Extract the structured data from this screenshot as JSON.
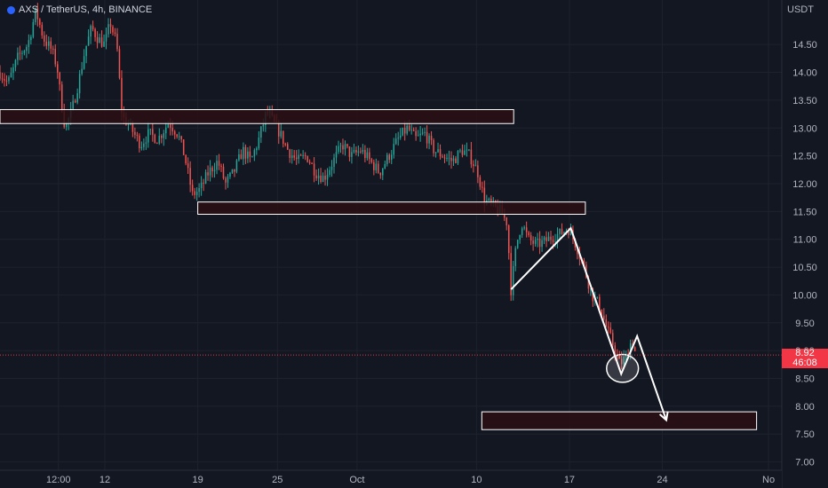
{
  "header": {
    "symbol": "AXS / TetherUS, 4h, BINANCE"
  },
  "axis": {
    "currency": "USDT"
  },
  "price_badge": {
    "price": "8.92",
    "countdown": "46:08"
  },
  "colors": {
    "background": "#131722",
    "up": "#26a69a",
    "down": "#ef5350",
    "zone_fill": "#2a0f14",
    "zone_stroke": "#ffffff",
    "drawing": "#ffffff",
    "last_price": "#f23645"
  },
  "chart_data": {
    "type": "candlestick",
    "symbol": "AXS / TetherUS",
    "interval": "4h",
    "exchange": "BINANCE",
    "ylim": [
      6.85,
      15.3
    ],
    "y_ticks": [
      7.0,
      7.5,
      8.0,
      8.5,
      9.0,
      9.5,
      10.0,
      10.5,
      11.0,
      11.5,
      12.0,
      12.5,
      13.0,
      13.5,
      14.0,
      14.5
    ],
    "y_tick_labels": [
      "7.00",
      "7.50",
      "8.00",
      "8.50",
      "9.00",
      "9.50",
      "10.00",
      "10.50",
      "11.00",
      "11.50",
      "12.00",
      "12.50",
      "13.00",
      "13.50",
      "14.00",
      "14.50"
    ],
    "x_ticks": [
      {
        "label": "12:00",
        "day": 0.5
      },
      {
        "label": "12",
        "day": 4
      },
      {
        "label": "19",
        "day": 11
      },
      {
        "label": "25",
        "day": 17
      },
      {
        "label": "Oct",
        "day": 23
      },
      {
        "label": "10",
        "day": 32
      },
      {
        "label": "17",
        "day": 39
      },
      {
        "label": "24",
        "day": 46
      },
      {
        "label": "No",
        "day": 54
      }
    ],
    "x_range_days": [
      -3.9,
      55
    ],
    "last_price": 8.92,
    "price_path": [
      [
        -3.9,
        14.0
      ],
      [
        -3.3,
        13.8
      ],
      [
        -2.5,
        14.3
      ],
      [
        -1.8,
        14.5
      ],
      [
        -1.2,
        15.1
      ],
      [
        -0.6,
        14.6
      ],
      [
        0.0,
        14.4
      ],
      [
        0.4,
        14.1
      ],
      [
        0.7,
        13.5
      ],
      [
        1.0,
        13.0
      ],
      [
        1.5,
        13.3
      ],
      [
        2.0,
        13.8
      ],
      [
        2.5,
        14.4
      ],
      [
        3.0,
        14.8
      ],
      [
        3.5,
        14.6
      ],
      [
        4.0,
        14.5
      ],
      [
        4.4,
        14.9
      ],
      [
        4.9,
        14.5
      ],
      [
        5.3,
        13.2
      ],
      [
        5.7,
        13.1
      ],
      [
        6.2,
        12.9
      ],
      [
        6.7,
        12.7
      ],
      [
        7.3,
        12.9
      ],
      [
        8.0,
        12.8
      ],
      [
        8.8,
        13.1
      ],
      [
        9.5,
        12.9
      ],
      [
        10.0,
        12.5
      ],
      [
        10.6,
        11.8
      ],
      [
        11.2,
        11.9
      ],
      [
        11.8,
        12.2
      ],
      [
        12.5,
        12.4
      ],
      [
        13.1,
        12.0
      ],
      [
        13.7,
        12.2
      ],
      [
        14.4,
        12.6
      ],
      [
        15.0,
        12.4
      ],
      [
        15.6,
        12.8
      ],
      [
        16.2,
        13.3
      ],
      [
        16.7,
        13.1
      ],
      [
        17.2,
        12.9
      ],
      [
        17.8,
        12.6
      ],
      [
        18.5,
        12.4
      ],
      [
        19.2,
        12.5
      ],
      [
        19.9,
        12.2
      ],
      [
        20.5,
        12.1
      ],
      [
        21.2,
        12.4
      ],
      [
        21.9,
        12.7
      ],
      [
        22.6,
        12.5
      ],
      [
        23.3,
        12.6
      ],
      [
        24.0,
        12.4
      ],
      [
        24.7,
        12.2
      ],
      [
        25.4,
        12.5
      ],
      [
        26.1,
        12.8
      ],
      [
        26.8,
        13.0
      ],
      [
        27.4,
        12.8
      ],
      [
        28.1,
        12.9
      ],
      [
        28.8,
        12.6
      ],
      [
        29.5,
        12.5
      ],
      [
        30.2,
        12.4
      ],
      [
        30.9,
        12.6
      ],
      [
        31.5,
        12.5
      ],
      [
        32.1,
        12.2
      ],
      [
        32.6,
        11.7
      ],
      [
        33.2,
        11.6
      ],
      [
        33.8,
        11.5
      ],
      [
        34.3,
        11.3
      ],
      [
        34.6,
        10.1
      ],
      [
        35.0,
        10.9
      ],
      [
        35.4,
        11.3
      ],
      [
        35.9,
        11.0
      ],
      [
        36.5,
        10.9
      ],
      [
        37.1,
        10.95
      ],
      [
        37.7,
        11.05
      ],
      [
        38.3,
        11.1
      ],
      [
        38.9,
        11.2
      ],
      [
        39.5,
        10.9
      ],
      [
        40.1,
        10.5
      ],
      [
        40.7,
        10.0
      ],
      [
        41.3,
        9.8
      ],
      [
        41.8,
        9.4
      ],
      [
        42.3,
        9.1
      ],
      [
        42.8,
        8.75
      ],
      [
        43.3,
        8.9
      ],
      [
        43.7,
        9.2
      ],
      [
        44.0,
        8.92
      ]
    ]
  },
  "drawings": {
    "zones": [
      {
        "x0_day": -3.9,
        "x1_day": 34.8,
        "y_low": 13.08,
        "y_high": 13.33
      },
      {
        "x0_day": 11.0,
        "x1_day": 40.2,
        "y_low": 11.45,
        "y_high": 11.67
      },
      {
        "x0_day": 32.4,
        "x1_day": 53.1,
        "y_low": 7.58,
        "y_high": 7.9
      }
    ],
    "path": [
      [
        34.6,
        10.1
      ],
      [
        39.1,
        11.2
      ],
      [
        42.9,
        8.58
      ],
      [
        44.1,
        9.26
      ],
      [
        46.3,
        7.75
      ]
    ],
    "ellipse": {
      "cx_day": 43.0,
      "cy": 8.68,
      "rx_days": 1.2,
      "ry": 0.25
    }
  }
}
